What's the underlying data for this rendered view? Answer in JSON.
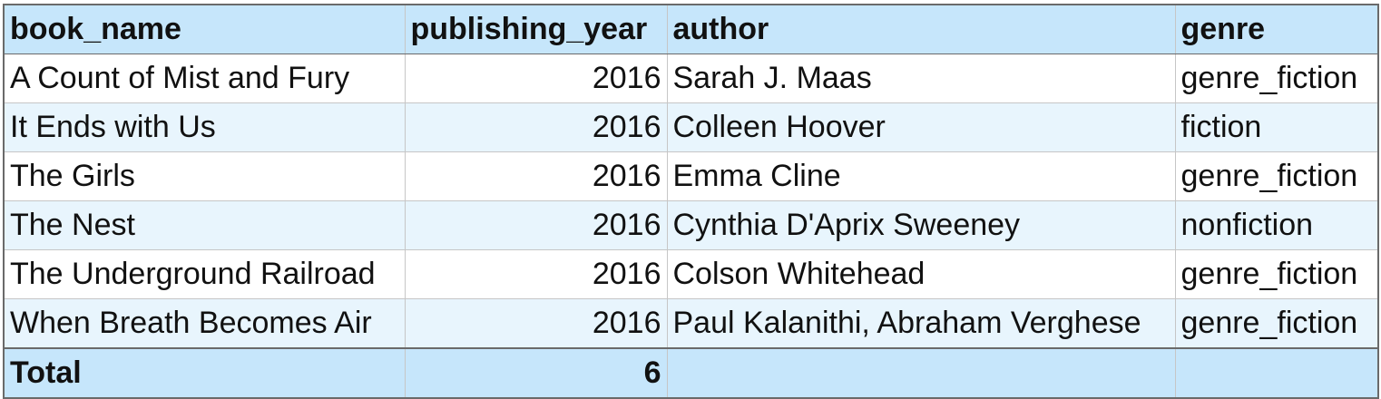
{
  "columns": [
    "book_name",
    "publishing_year",
    "author",
    "genre"
  ],
  "rows": [
    {
      "book_name": "A Count of Mist and Fury",
      "publishing_year": "2016",
      "author": "Sarah J. Maas",
      "genre": "genre_fiction"
    },
    {
      "book_name": "It Ends with Us",
      "publishing_year": "2016",
      "author": "Colleen Hoover",
      "genre": "fiction"
    },
    {
      "book_name": "The Girls",
      "publishing_year": "2016",
      "author": "Emma Cline",
      "genre": "genre_fiction"
    },
    {
      "book_name": "The Nest",
      "publishing_year": "2016",
      "author": "Cynthia D'Aprix Sweeney",
      "genre": "nonfiction"
    },
    {
      "book_name": "The Underground Railroad",
      "publishing_year": "2016",
      "author": "Colson Whitehead",
      "genre": "genre_fiction"
    },
    {
      "book_name": "When Breath Becomes Air",
      "publishing_year": "2016",
      "author": "Paul Kalanithi, Abraham Verghese",
      "genre": "genre_fiction"
    }
  ],
  "total": {
    "label": "Total",
    "publishing_year": "6",
    "author": "",
    "genre": ""
  },
  "colors": {
    "header_bg": "#c6e6fb",
    "row_alt_bg": "#e8f5fd",
    "row_bg": "#ffffff",
    "border": "#c6c6c6"
  }
}
